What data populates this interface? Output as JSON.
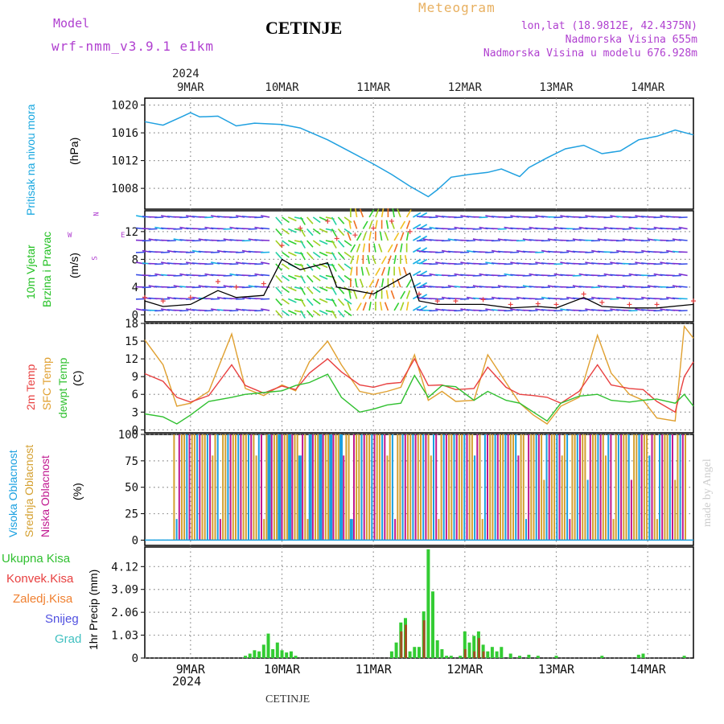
{
  "header": {
    "model_label": "Model",
    "model_name": "wrf-nmm_v3.9.1  e1km",
    "station": "CETINJE",
    "product": "Meteogram",
    "coords": "lon,lat (18.9812E, 42.4375N)",
    "elevation": "Nadmorska Visina 655m",
    "model_elevation": "Nadmorska Visina u modelu 676.928m"
  },
  "footer": {
    "station": "CETINJE",
    "credit": "made by Angel"
  },
  "x_axis": {
    "year": "2024",
    "day_labels": [
      "9MAR",
      "10MAR",
      "11MAR",
      "12MAR",
      "13MAR",
      "14MAR"
    ],
    "day_positions": [
      0.5,
      1.5,
      2.5,
      3.5,
      4.5,
      5.5
    ],
    "range_days": [
      0,
      6.0
    ]
  },
  "panel_labels": {
    "pressure": [
      "Pritisak na nivou mora",
      "(hPa)"
    ],
    "wind": [
      "10m Vjetar",
      "Brzina i Pravac",
      "(m/s)"
    ],
    "wind_compass": [
      "N",
      "E",
      "S",
      "W"
    ],
    "temp": [
      "2m Temp",
      "SFC Temp",
      "dewpt Temp",
      "(C)"
    ],
    "cloud": [
      "Visoka Oblacnost",
      "Srednja Oblacnost",
      "Niska Oblacnost",
      "(%)"
    ],
    "precip": [
      "Ukupna Kisa",
      "Konvek.Kisa",
      "Zaledj.Kisa",
      "Snijeg",
      "Grad",
      "1hr Precip (mm)"
    ]
  },
  "colors": {
    "pressure": "#1fa0e0",
    "temp2m": "#e84040",
    "sfc": "#e0a030",
    "dew": "#30c030",
    "high_cloud": "#1aa0e0",
    "mid_cloud": "#d4a030",
    "low_cloud": "#c01890",
    "precip_total": "#33cc33",
    "precip_conv": "#e04040",
    "zaledj": "#f08030",
    "snow": "#5050e0",
    "hail": "#40c0c0",
    "purple_text": "#b040d0"
  },
  "chart_data": [
    {
      "type": "line",
      "name": "pressure",
      "ylabel": "(hPa)",
      "ylim": [
        1005,
        1021
      ],
      "yticks": [
        "1008",
        "1012",
        "1016",
        "1020"
      ],
      "x": [
        0.0,
        0.2,
        0.4,
        0.5,
        0.6,
        0.8,
        1.0,
        1.2,
        1.5,
        1.7,
        2.0,
        2.2,
        2.5,
        2.7,
        2.9,
        3.1,
        3.2,
        3.35,
        3.55,
        3.75,
        3.9,
        4.1,
        4.2,
        4.4,
        4.6,
        4.8,
        5.0,
        5.2,
        5.4,
        5.6,
        5.8,
        6.0
      ],
      "values": [
        1017.6,
        1017.1,
        1018.3,
        1018.9,
        1018.3,
        1018.4,
        1017.0,
        1017.4,
        1017.2,
        1016.7,
        1015.0,
        1013.6,
        1011.5,
        1010.0,
        1008.3,
        1006.8,
        1007.8,
        1009.6,
        1010.0,
        1010.3,
        1010.8,
        1009.7,
        1011.0,
        1012.4,
        1013.7,
        1014.2,
        1013.0,
        1013.4,
        1015.0,
        1015.5,
        1016.4,
        1015.7
      ]
    },
    {
      "type": "line",
      "name": "wind_speed",
      "ylabel": "(m/s)",
      "ylim": [
        -1,
        15
      ],
      "yticks": [
        "0",
        "4",
        "8",
        "12"
      ],
      "x": [
        0.0,
        0.2,
        0.5,
        0.8,
        1.0,
        1.3,
        1.5,
        1.7,
        2.0,
        2.1,
        2.3,
        2.5,
        2.7,
        2.9,
        3.0,
        3.2,
        3.4,
        3.7,
        4.0,
        4.3,
        4.5,
        4.8,
        5.0,
        5.3,
        5.6,
        6.0
      ],
      "values": [
        2.0,
        1.2,
        1.5,
        3.5,
        2.5,
        2.8,
        8.0,
        6.5,
        7.5,
        4.0,
        3.5,
        3.0,
        4.5,
        6.0,
        2.0,
        1.5,
        1.5,
        1.5,
        1.0,
        1.2,
        1.0,
        2.5,
        1.2,
        1.0,
        1.0,
        1.5
      ],
      "gust_values": [
        2.5,
        2.0,
        2.5,
        4.8,
        4.0,
        4.5,
        10.0,
        12.5,
        13.5,
        11.0,
        11.5,
        12.5,
        13.5,
        12.0,
        3.0,
        2.0,
        2.0,
        2.2,
        1.5,
        1.6,
        1.5,
        3.0,
        1.8,
        1.5,
        1.5,
        2.0
      ]
    },
    {
      "type": "line",
      "name": "temperature",
      "ylabel": "(C)",
      "ylim": [
        -0.5,
        18
      ],
      "yticks": [
        "0",
        "3",
        "6",
        "9",
        "12",
        "15",
        "18"
      ],
      "x_labels_note": "",
      "x": [
        0.0,
        0.2,
        0.35,
        0.5,
        0.7,
        0.95,
        1.1,
        1.3,
        1.5,
        1.65,
        1.8,
        2.0,
        2.15,
        2.35,
        2.5,
        2.65,
        2.8,
        2.95,
        3.1,
        3.25,
        3.4,
        3.6,
        3.75,
        3.95,
        4.1,
        4.25,
        4.4,
        4.55,
        4.75,
        4.95,
        5.1,
        5.3,
        5.45,
        5.6,
        5.8,
        5.9,
        6.0
      ],
      "series": [
        {
          "name": "2m Temp",
          "values": [
            9.5,
            8.2,
            5.5,
            4.7,
            5.8,
            11.0,
            7.5,
            6.2,
            7.4,
            6.8,
            9.6,
            12.0,
            9.8,
            7.6,
            7.2,
            7.8,
            8.0,
            12.0,
            7.5,
            7.6,
            6.8,
            7.0,
            10.6,
            7.2,
            6.0,
            5.8,
            5.5,
            4.5,
            6.5,
            11.0,
            7.6,
            7.0,
            6.8,
            4.8,
            3.0,
            9.0,
            11.5
          ]
        },
        {
          "name": "SFC Temp",
          "values": [
            15.2,
            11.0,
            4.0,
            4.5,
            6.5,
            16.2,
            7.0,
            5.8,
            7.6,
            6.6,
            11.5,
            15.0,
            11.0,
            6.5,
            6.0,
            6.5,
            7.2,
            12.7,
            5.0,
            6.5,
            4.8,
            5.0,
            12.7,
            8.0,
            4.5,
            2.5,
            1.0,
            4.0,
            5.5,
            16.0,
            9.6,
            6.0,
            5.0,
            2.0,
            1.5,
            17.5,
            15.5
          ]
        },
        {
          "name": "dewpt Temp",
          "values": [
            2.7,
            2.2,
            1.0,
            2.5,
            4.8,
            5.5,
            6.0,
            6.3,
            6.6,
            7.5,
            8.0,
            9.4,
            5.5,
            3.0,
            3.5,
            4.2,
            4.5,
            9.2,
            5.5,
            7.5,
            7.3,
            5.0,
            6.5,
            5.0,
            4.5,
            3.0,
            1.5,
            4.5,
            5.7,
            6.0,
            5.0,
            4.7,
            5.0,
            5.2,
            4.5,
            6.0,
            4.0
          ]
        }
      ]
    },
    {
      "type": "bar",
      "name": "cloud_cover",
      "ylabel": "(%)",
      "ylim": [
        -5,
        100
      ],
      "yticks": [
        "0",
        "25",
        "50",
        "75",
        "100"
      ]
    },
    {
      "type": "bar",
      "name": "precipitation",
      "ylabel": "1hr Precip (mm)",
      "ylim": [
        0,
        5
      ],
      "yticks": [
        "0",
        "1.03",
        "2.06",
        "3.09",
        "4.12"
      ],
      "series": [
        {
          "name": "Ukupna Kisa",
          "x": [
            1.1,
            1.15,
            1.2,
            1.25,
            1.3,
            1.35,
            1.4,
            1.45,
            1.5,
            1.55,
            1.6,
            1.65,
            2.7,
            2.75,
            2.8,
            2.85,
            2.9,
            2.95,
            3.0,
            3.05,
            3.1,
            3.15,
            3.2,
            3.25,
            3.3,
            3.35,
            3.45,
            3.5,
            3.55,
            3.6,
            3.65,
            3.7,
            3.75,
            3.8,
            3.85,
            3.9,
            4.0,
            4.1,
            4.2,
            4.3,
            4.5,
            5.0,
            5.4,
            5.45,
            5.9
          ],
          "values": [
            0.1,
            0.2,
            0.35,
            0.3,
            0.6,
            1.1,
            0.4,
            0.7,
            0.35,
            0.25,
            0.3,
            0.1,
            0.3,
            0.7,
            1.6,
            1.8,
            0.3,
            0.5,
            0.5,
            2.1,
            4.9,
            3.0,
            0.8,
            0.4,
            0.1,
            0.1,
            0.1,
            1.2,
            0.7,
            1.0,
            1.2,
            0.6,
            0.3,
            0.5,
            0.3,
            0.5,
            0.2,
            0.1,
            0.15,
            0.1,
            0.1,
            0.1,
            0.15,
            0.2,
            0.1
          ]
        },
        {
          "name": "Konvek.Kisa",
          "x": [
            2.8,
            2.85,
            3.05,
            3.5,
            3.6,
            3.65,
            3.7
          ],
          "values": [
            1.2,
            1.5,
            1.7,
            0.4,
            0.3,
            0.9,
            0.3
          ]
        }
      ]
    }
  ]
}
